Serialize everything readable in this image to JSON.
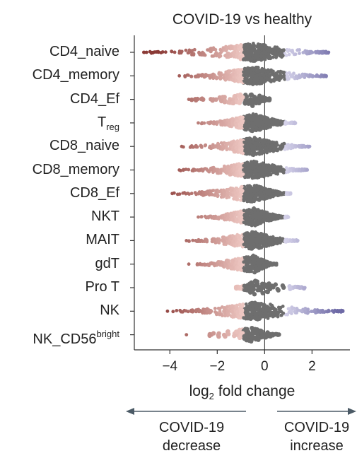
{
  "title": "COVID-19 vs healthy",
  "xlabel": {
    "main": "log",
    "sub": "2",
    "rest": " fold change"
  },
  "direction": {
    "left": [
      "COVID-19",
      "decrease"
    ],
    "right": [
      "COVID-19",
      "increase"
    ]
  },
  "colors": {
    "decrease_dark": "#8b3a36",
    "decrease_light": "#efc9c4",
    "neutral": "#6e6e6e",
    "increase_light": "#d6d3ea",
    "increase_dark": "#6e6aa6",
    "axis": "#333333"
  },
  "chart_data": {
    "type": "scatter",
    "style": "beeswarm",
    "title": "COVID-19 vs healthy",
    "xlabel": "log2 fold change",
    "xlim": [
      -5.5,
      3.6
    ],
    "xticks": [
      -4,
      -2,
      0,
      2
    ],
    "xtick_labels": [
      "−4",
      "−2",
      "0",
      "2"
    ],
    "zero_line": true,
    "categories": [
      {
        "label": "CD4_naive",
        "sup": "",
        "sub": "",
        "min": -5.1,
        "max": 2.7,
        "dense": true
      },
      {
        "label": "CD4_memory",
        "sup": "",
        "sub": "",
        "min": -3.6,
        "max": 2.6,
        "dense": true
      },
      {
        "label": "CD4_Ef",
        "sup": "",
        "sub": "",
        "min": -3.2,
        "max": 0.2,
        "dense": false
      },
      {
        "label": "T",
        "sup": "",
        "sub": "reg",
        "min": -2.8,
        "max": 1.3,
        "dense": true
      },
      {
        "label": "CD8_naive",
        "sup": "",
        "sub": "",
        "min": -3.5,
        "max": 1.9,
        "dense": true
      },
      {
        "label": "CD8_memory",
        "sup": "",
        "sub": "",
        "min": -3.6,
        "max": 1.8,
        "dense": true
      },
      {
        "label": "CD8_Ef",
        "sup": "",
        "sub": "",
        "min": -3.9,
        "max": 1.1,
        "dense": true
      },
      {
        "label": "NKT",
        "sup": "",
        "sub": "",
        "min": -2.8,
        "max": 1.0,
        "dense": true
      },
      {
        "label": "MAIT",
        "sup": "",
        "sub": "",
        "min": -3.3,
        "max": 1.4,
        "dense": true
      },
      {
        "label": "gdT",
        "sup": "",
        "sub": "",
        "min": -3.2,
        "max": 0.5,
        "dense": true
      },
      {
        "label": "Pro T",
        "sup": "",
        "sub": "",
        "min": -1.2,
        "max": 1.7,
        "dense": false
      },
      {
        "label": "NK",
        "sup": "",
        "sub": "",
        "min": -4.1,
        "max": 3.3,
        "dense": true
      },
      {
        "label": "NK_CD56",
        "sup": "bright",
        "sub": "",
        "min": -3.3,
        "max": 0.6,
        "dense": false
      }
    ]
  }
}
